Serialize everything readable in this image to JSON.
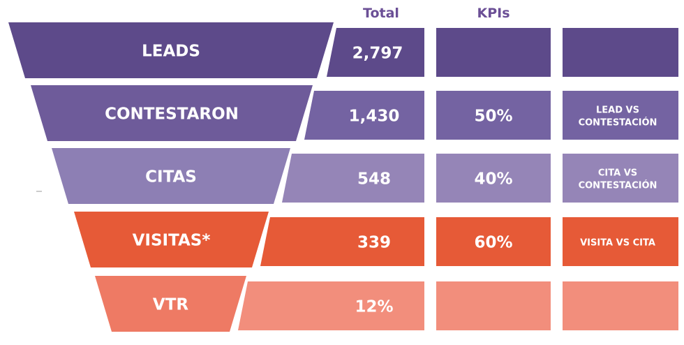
{
  "headers": {
    "total": "Total",
    "kpis": "KPIs"
  },
  "colors": {
    "header_text": "#6b4f96",
    "stage_fills": [
      "#5d4a8a",
      "#6e5b9a",
      "#8d7fb4",
      "#e65a37",
      "#ee7a64"
    ],
    "row_fills": [
      "#5d4a8a",
      "#7463a2",
      "#9585b7",
      "#e65a37",
      "#f28e7c"
    ],
    "label_text": "#ffffff"
  },
  "chart_data": {
    "type": "table",
    "title": "",
    "columns": [
      "Total",
      "KPIs",
      ""
    ],
    "stages": [
      {
        "label": "LEADS",
        "total": "2,797",
        "kpi": "",
        "kpi_desc": []
      },
      {
        "label": "CONTESTARON",
        "total": "1,430",
        "kpi": "50%",
        "kpi_desc": [
          "LEAD VS",
          "CONTESTACIÓN"
        ]
      },
      {
        "label": "CITAS",
        "total": "548",
        "kpi": "40%",
        "kpi_desc": [
          "CITA VS",
          "CONTESTACIÓN"
        ]
      },
      {
        "label": "VISITAS*",
        "total": "339",
        "kpi": "60%",
        "kpi_desc": [
          "VISITA VS CITA"
        ]
      },
      {
        "label": "VTR",
        "total": "12%",
        "kpi": "",
        "kpi_desc": []
      }
    ],
    "totals_numeric": [
      2797,
      1430,
      548,
      339
    ],
    "kpis_numeric": [
      null,
      50,
      40,
      60,
      null
    ],
    "vtr_percent": 12
  }
}
